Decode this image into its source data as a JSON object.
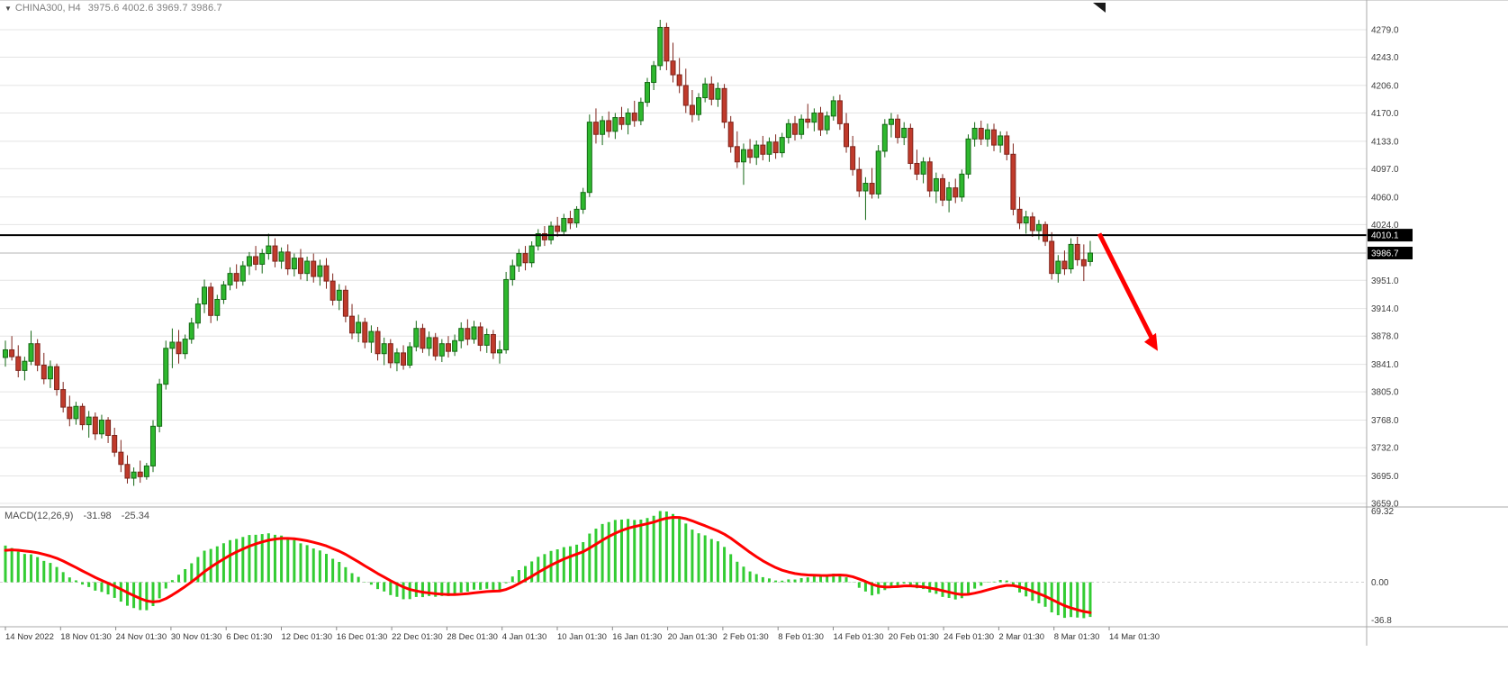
{
  "header": {
    "dropdown_icon": "▼",
    "symbol": "CHINA300, H4",
    "ohlc": "3975.6 4002.6 3969.7 3986.7"
  },
  "price_axis": {
    "ticks": [
      "4279.0",
      "4243.0",
      "4206.0",
      "4170.0",
      "4133.0",
      "4097.0",
      "4060.0",
      "4024.0",
      "3951.0",
      "3914.0",
      "3878.0",
      "3841.0",
      "3805.0",
      "3768.0",
      "3732.0",
      "3695.0",
      "3659.0"
    ],
    "tags": [
      {
        "name": "line-price-tag",
        "value": "4010.1"
      },
      {
        "name": "bid-price-tag",
        "value": "3986.7"
      }
    ]
  },
  "time_axis": {
    "labels": [
      "14 Nov 2022",
      "18 Nov 01:30",
      "24 Nov 01:30",
      "30 Nov 01:30",
      "6 Dec 01:30",
      "12 Dec 01:30",
      "16 Dec 01:30",
      "22 Dec 01:30",
      "28 Dec 01:30",
      "4 Jan 01:30",
      "10 Jan 01:30",
      "16 Jan 01:30",
      "20 Jan 01:30",
      "2 Feb 01:30",
      "8 Feb 01:30",
      "14 Feb 01:30",
      "20 Feb 01:30",
      "24 Feb 01:30",
      "2 Mar 01:30",
      "8 Mar 01:30",
      "14 Mar 01:30"
    ]
  },
  "macd": {
    "label": "MACD(12,26,9)",
    "main_value": "-31.98",
    "signal_value": "-25.34",
    "scale": [
      "69.32",
      "0.00",
      "-36.8"
    ]
  },
  "colors": {
    "bull": "#2eb82e",
    "bull_border": "#156815",
    "bear": "#c03a2b",
    "bear_border": "#7e241b",
    "macd_hist": "#33cc33",
    "macd_signal": "#ff0000",
    "grid": "#e4e4e4",
    "hline": "#000000",
    "bid_line": "#b5b5b5",
    "tag_bg": "#000000",
    "tag_text": "#ffffff",
    "arrow": "#ff0000",
    "separator": "#a8a8a8",
    "axis_text": "#3c3c3c",
    "time_text": "#333333"
  },
  "chart_data": {
    "type": "candlestick",
    "symbol": "CHINA300",
    "timeframe": "H4",
    "current_ohlc": {
      "open": 3975.6,
      "high": 4002.6,
      "low": 3969.7,
      "close": 3986.7
    },
    "horizontal_line": 4010.1,
    "bid_price": 3986.7,
    "price_axis_top": 4279.0,
    "price_axis_bottom": 3659.0,
    "indicator": {
      "name": "MACD",
      "params": [
        12,
        26,
        9
      ],
      "main": -31.98,
      "signal": -25.34,
      "scale_max": 69.32,
      "scale_min": -36.8
    },
    "annotations": [
      {
        "type": "arrow",
        "color": "#ff0000",
        "from_price": 4012,
        "to_price": 3862,
        "note": "red down arrow after price breaks below 4010.1 line"
      }
    ],
    "candles": [
      [
        3850,
        3872,
        3838,
        3860
      ],
      [
        3860,
        3878,
        3846,
        3851
      ],
      [
        3851,
        3866,
        3824,
        3833
      ],
      [
        3833,
        3851,
        3820,
        3845
      ],
      [
        3845,
        3885,
        3840,
        3868
      ],
      [
        3868,
        3874,
        3832,
        3840
      ],
      [
        3840,
        3856,
        3815,
        3822
      ],
      [
        3822,
        3846,
        3810,
        3838
      ],
      [
        3838,
        3842,
        3800,
        3808
      ],
      [
        3808,
        3818,
        3778,
        3785
      ],
      [
        3785,
        3800,
        3760,
        3770
      ],
      [
        3770,
        3792,
        3762,
        3786
      ],
      [
        3786,
        3790,
        3755,
        3762
      ],
      [
        3762,
        3780,
        3745,
        3772
      ],
      [
        3772,
        3778,
        3742,
        3750
      ],
      [
        3750,
        3775,
        3744,
        3768
      ],
      [
        3768,
        3772,
        3738,
        3748
      ],
      [
        3748,
        3758,
        3720,
        3726
      ],
      [
        3726,
        3742,
        3700,
        3710
      ],
      [
        3710,
        3722,
        3685,
        3692
      ],
      [
        3692,
        3706,
        3682,
        3700
      ],
      [
        3700,
        3715,
        3686,
        3694
      ],
      [
        3694,
        3712,
        3690,
        3708
      ],
      [
        3708,
        3768,
        3700,
        3760
      ],
      [
        3760,
        3822,
        3752,
        3815
      ],
      [
        3815,
        3872,
        3808,
        3862
      ],
      [
        3862,
        3888,
        3836,
        3870
      ],
      [
        3870,
        3886,
        3842,
        3855
      ],
      [
        3855,
        3880,
        3848,
        3874
      ],
      [
        3874,
        3902,
        3868,
        3895
      ],
      [
        3895,
        3928,
        3888,
        3920
      ],
      [
        3920,
        3952,
        3908,
        3942
      ],
      [
        3942,
        3948,
        3895,
        3905
      ],
      [
        3905,
        3932,
        3898,
        3926
      ],
      [
        3926,
        3950,
        3920,
        3945
      ],
      [
        3945,
        3968,
        3938,
        3960
      ],
      [
        3960,
        3972,
        3940,
        3950
      ],
      [
        3950,
        3976,
        3944,
        3970
      ],
      [
        3970,
        3988,
        3958,
        3982
      ],
      [
        3982,
        3996,
        3964,
        3972
      ],
      [
        3972,
        3992,
        3960,
        3986
      ],
      [
        3986,
        4012,
        3978,
        3996
      ],
      [
        3996,
        4006,
        3968,
        3976
      ],
      [
        3976,
        3994,
        3966,
        3988
      ],
      [
        3988,
        3998,
        3958,
        3966
      ],
      [
        3966,
        3986,
        3956,
        3980
      ],
      [
        3980,
        3992,
        3952,
        3960
      ],
      [
        3960,
        3982,
        3950,
        3976
      ],
      [
        3976,
        3986,
        3948,
        3956
      ],
      [
        3956,
        3978,
        3944,
        3970
      ],
      [
        3970,
        3980,
        3940,
        3950
      ],
      [
        3950,
        3960,
        3918,
        3925
      ],
      [
        3925,
        3946,
        3912,
        3938
      ],
      [
        3938,
        3944,
        3896,
        3904
      ],
      [
        3904,
        3920,
        3874,
        3882
      ],
      [
        3882,
        3906,
        3870,
        3896
      ],
      [
        3896,
        3902,
        3862,
        3870
      ],
      [
        3870,
        3892,
        3856,
        3884
      ],
      [
        3884,
        3890,
        3846,
        3855
      ],
      [
        3855,
        3876,
        3840,
        3868
      ],
      [
        3868,
        3874,
        3836,
        3843
      ],
      [
        3843,
        3862,
        3832,
        3856
      ],
      [
        3856,
        3866,
        3834,
        3840
      ],
      [
        3840,
        3870,
        3836,
        3864
      ],
      [
        3864,
        3898,
        3858,
        3888
      ],
      [
        3888,
        3894,
        3856,
        3862
      ],
      [
        3862,
        3884,
        3852,
        3876
      ],
      [
        3876,
        3882,
        3846,
        3852
      ],
      [
        3852,
        3874,
        3844,
        3868
      ],
      [
        3868,
        3878,
        3850,
        3858
      ],
      [
        3858,
        3880,
        3852,
        3872
      ],
      [
        3872,
        3896,
        3862,
        3888
      ],
      [
        3888,
        3900,
        3866,
        3874
      ],
      [
        3874,
        3898,
        3868,
        3890
      ],
      [
        3890,
        3896,
        3858,
        3866
      ],
      [
        3866,
        3888,
        3856,
        3880
      ],
      [
        3880,
        3886,
        3848,
        3856
      ],
      [
        3856,
        3872,
        3842,
        3860
      ],
      [
        3860,
        3962,
        3855,
        3952
      ],
      [
        3952,
        3978,
        3944,
        3970
      ],
      [
        3970,
        3992,
        3962,
        3986
      ],
      [
        3986,
        3996,
        3964,
        3974
      ],
      [
        3974,
        4002,
        3968,
        3996
      ],
      [
        3996,
        4018,
        3990,
        4012
      ],
      [
        4012,
        4022,
        3996,
        4004
      ],
      [
        4004,
        4028,
        3998,
        4022
      ],
      [
        4022,
        4034,
        4008,
        4015
      ],
      [
        4015,
        4038,
        4010,
        4032
      ],
      [
        4032,
        4042,
        4018,
        4026
      ],
      [
        4026,
        4048,
        4020,
        4044
      ],
      [
        4044,
        4072,
        4038,
        4066
      ],
      [
        4066,
        4168,
        4060,
        4158
      ],
      [
        4158,
        4176,
        4130,
        4142
      ],
      [
        4142,
        4166,
        4128,
        4160
      ],
      [
        4160,
        4172,
        4138,
        4146
      ],
      [
        4146,
        4170,
        4136,
        4164
      ],
      [
        4164,
        4178,
        4148,
        4155
      ],
      [
        4155,
        4176,
        4142,
        4170
      ],
      [
        4170,
        4186,
        4152,
        4160
      ],
      [
        4160,
        4190,
        4154,
        4184
      ],
      [
        4184,
        4216,
        4178,
        4210
      ],
      [
        4210,
        4238,
        4200,
        4232
      ],
      [
        4232,
        4292,
        4226,
        4282
      ],
      [
        4282,
        4288,
        4226,
        4238
      ],
      [
        4238,
        4262,
        4210,
        4220
      ],
      [
        4220,
        4242,
        4196,
        4206
      ],
      [
        4206,
        4228,
        4170,
        4180
      ],
      [
        4180,
        4200,
        4158,
        4168
      ],
      [
        4168,
        4196,
        4160,
        4190
      ],
      [
        4190,
        4216,
        4184,
        4208
      ],
      [
        4208,
        4218,
        4180,
        4188
      ],
      [
        4188,
        4210,
        4178,
        4202
      ],
      [
        4202,
        4208,
        4150,
        4158
      ],
      [
        4158,
        4166,
        4118,
        4126
      ],
      [
        4126,
        4146,
        4098,
        4106
      ],
      [
        4106,
        4130,
        4076,
        4122
      ],
      [
        4122,
        4136,
        4104,
        4112
      ],
      [
        4112,
        4134,
        4102,
        4128
      ],
      [
        4128,
        4140,
        4108,
        4116
      ],
      [
        4116,
        4138,
        4106,
        4132
      ],
      [
        4132,
        4142,
        4110,
        4118
      ],
      [
        4118,
        4144,
        4112,
        4138
      ],
      [
        4138,
        4162,
        4130,
        4156
      ],
      [
        4156,
        4166,
        4134,
        4142
      ],
      [
        4142,
        4168,
        4136,
        4162
      ],
      [
        4162,
        4182,
        4150,
        4158
      ],
      [
        4158,
        4176,
        4146,
        4170
      ],
      [
        4170,
        4178,
        4140,
        4148
      ],
      [
        4148,
        4172,
        4142,
        4166
      ],
      [
        4166,
        4192,
        4160,
        4186
      ],
      [
        4186,
        4194,
        4148,
        4156
      ],
      [
        4156,
        4170,
        4118,
        4126
      ],
      [
        4126,
        4140,
        4088,
        4096
      ],
      [
        4096,
        4112,
        4060,
        4068
      ],
      [
        4068,
        4086,
        4030,
        4078
      ],
      [
        4078,
        4098,
        4058,
        4064
      ],
      [
        4064,
        4128,
        4058,
        4120
      ],
      [
        4120,
        4162,
        4112,
        4155
      ],
      [
        4155,
        4170,
        4138,
        4162
      ],
      [
        4162,
        4168,
        4130,
        4138
      ],
      [
        4138,
        4158,
        4128,
        4150
      ],
      [
        4150,
        4156,
        4096,
        4104
      ],
      [
        4104,
        4122,
        4082,
        4090
      ],
      [
        4090,
        4112,
        4078,
        4106
      ],
      [
        4106,
        4112,
        4060,
        4068
      ],
      [
        4068,
        4092,
        4052,
        4084
      ],
      [
        4084,
        4090,
        4048,
        4056
      ],
      [
        4056,
        4080,
        4040,
        4072
      ],
      [
        4072,
        4084,
        4052,
        4060
      ],
      [
        4060,
        4096,
        4054,
        4090
      ],
      [
        4090,
        4142,
        4084,
        4136
      ],
      [
        4136,
        4158,
        4126,
        4150
      ],
      [
        4150,
        4160,
        4128,
        4136
      ],
      [
        4136,
        4156,
        4126,
        4148
      ],
      [
        4148,
        4156,
        4120,
        4128
      ],
      [
        4128,
        4146,
        4118,
        4140
      ],
      [
        4140,
        4146,
        4108,
        4116
      ],
      [
        4116,
        4130,
        4036,
        4044
      ],
      [
        4044,
        4060,
        4018,
        4026
      ],
      [
        4026,
        4042,
        4012,
        4034
      ],
      [
        4034,
        4040,
        4008,
        4016
      ],
      [
        4016,
        4030,
        4004,
        4024
      ],
      [
        4024,
        4028,
        3996,
        4002
      ],
      [
        4002,
        4014,
        3952,
        3960
      ],
      [
        3960,
        3984,
        3948,
        3976
      ],
      [
        3976,
        3990,
        3958,
        3966
      ],
      [
        3966,
        4006,
        3960,
        3998
      ],
      [
        3998,
        4008,
        3970,
        3978
      ],
      [
        3978,
        3998,
        3950,
        3970
      ],
      [
        3975.6,
        4002.6,
        3969.7,
        3986.7
      ]
    ]
  }
}
